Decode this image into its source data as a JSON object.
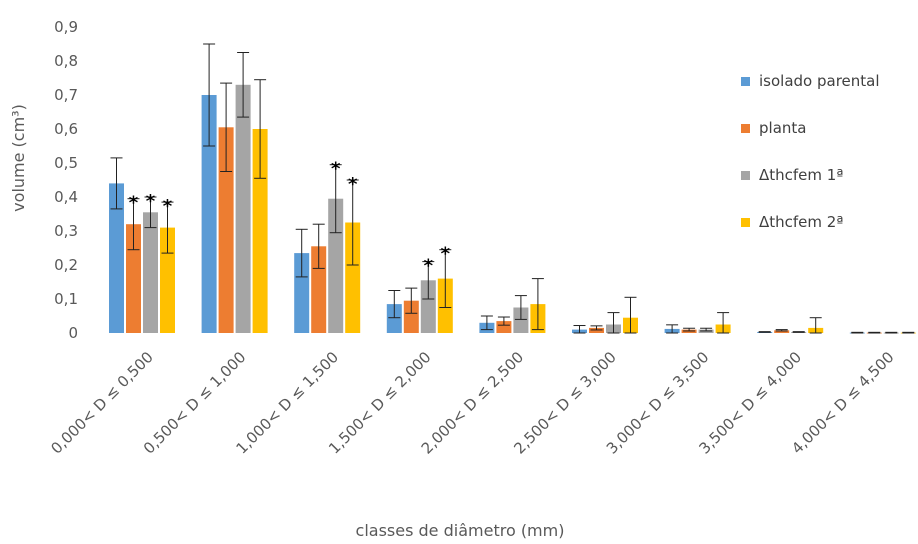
{
  "chart_data": {
    "type": "bar",
    "xlabel": "classes de diâmetro (mm)",
    "ylabel": "volume (cm³)",
    "ylim": [
      0,
      0.9
    ],
    "yticks": [
      "0",
      "0,1",
      "0,2",
      "0,3",
      "0,4",
      "0,5",
      "0,6",
      "0,7",
      "0,8",
      "0,9"
    ],
    "grid": false,
    "legend_position": "right",
    "categories": [
      "0,000< D ≤ 0,500",
      "0,500< D ≤ 1,000",
      "1,000< D ≤ 1,500",
      "1,500< D ≤ 2,000",
      "2,000< D ≤ 2,500",
      "2,500< D ≤ 3,000",
      "3,000< D ≤ 3,500",
      "3,500< D ≤ 4,000",
      "4,000< D ≤ 4,500"
    ],
    "series": [
      {
        "name": "isolado parental",
        "color": "#5B9BD5",
        "values": [
          0.44,
          0.7,
          0.235,
          0.085,
          0.03,
          0.01,
          0.012,
          0.003,
          0.001
        ],
        "errors": [
          0.075,
          0.15,
          0.07,
          0.04,
          0.02,
          0.012,
          0.012,
          0.001,
          0.001
        ],
        "significant": [
          false,
          false,
          false,
          false,
          false,
          false,
          false,
          false,
          false
        ]
      },
      {
        "name": "planta",
        "color": "#ED7D31",
        "values": [
          0.32,
          0.605,
          0.255,
          0.095,
          0.035,
          0.015,
          0.01,
          0.008,
          0.001
        ],
        "errors": [
          0.075,
          0.13,
          0.065,
          0.037,
          0.012,
          0.006,
          0.004,
          0.002,
          0.001
        ],
        "significant": [
          true,
          false,
          false,
          false,
          false,
          false,
          false,
          false,
          false
        ]
      },
      {
        "name": "Δthcfem 1ª",
        "color": "#A5A5A5",
        "values": [
          0.355,
          0.73,
          0.395,
          0.155,
          0.075,
          0.025,
          0.01,
          0.003,
          0.001
        ],
        "errors": [
          0.045,
          0.095,
          0.1,
          0.055,
          0.035,
          0.035,
          0.004,
          0.001,
          0.001
        ],
        "significant": [
          true,
          false,
          true,
          true,
          false,
          false,
          false,
          false,
          false
        ]
      },
      {
        "name": "Δthcfem 2ª",
        "color": "#FFC000",
        "values": [
          0.31,
          0.6,
          0.325,
          0.16,
          0.085,
          0.045,
          0.025,
          0.015,
          0.001
        ],
        "errors": [
          0.075,
          0.145,
          0.125,
          0.085,
          0.075,
          0.06,
          0.035,
          0.03,
          0.001
        ],
        "significant": [
          true,
          false,
          true,
          true,
          false,
          false,
          false,
          false,
          false
        ]
      }
    ],
    "significance_marker": "*"
  }
}
